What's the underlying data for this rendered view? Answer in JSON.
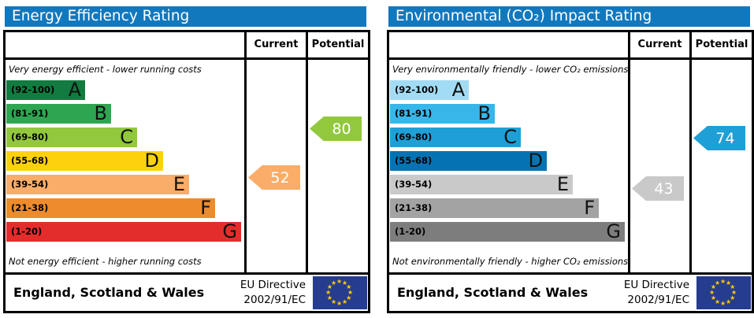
{
  "panels": [
    {
      "title": "Energy Efficiency Rating",
      "header_bg": "#1278be",
      "columns": {
        "current": "Current",
        "potential": "Potential"
      },
      "top_caption": "Very energy efficient - lower running costs",
      "bottom_caption": "Not energy efficient - higher running costs",
      "bands": [
        {
          "range": "(92-100)",
          "letter": "A",
          "color": "#127b40"
        },
        {
          "range": "(81-91)",
          "letter": "B",
          "color": "#2ea651"
        },
        {
          "range": "(69-80)",
          "letter": "C",
          "color": "#92c83e"
        },
        {
          "range": "(55-68)",
          "letter": "D",
          "color": "#fed10e"
        },
        {
          "range": "(39-54)",
          "letter": "E",
          "color": "#f9ad68"
        },
        {
          "range": "(21-38)",
          "letter": "F",
          "color": "#ee8b2c"
        },
        {
          "range": "(1-20)",
          "letter": "G",
          "color": "#e32d2b"
        }
      ],
      "current": {
        "value": "52",
        "color": "#f9ad68"
      },
      "potential": {
        "value": "80",
        "color": "#92c83e"
      },
      "footer": {
        "region": "England, Scotland & Wales",
        "directive_line1": "EU Directive",
        "directive_line2": "2002/91/EC"
      }
    },
    {
      "title": "Environmental (CO₂) Impact Rating",
      "header_bg": "#1278be",
      "columns": {
        "current": "Current",
        "potential": "Potential"
      },
      "top_caption": "Very environmentally friendly - lower CO₂ emissions",
      "bottom_caption": "Not environmentally friendly - higher CO₂ emissions",
      "bands": [
        {
          "range": "(92-100)",
          "letter": "A",
          "color": "#a2dcf4"
        },
        {
          "range": "(81-91)",
          "letter": "B",
          "color": "#38b6e9"
        },
        {
          "range": "(69-80)",
          "letter": "C",
          "color": "#1ea0d6"
        },
        {
          "range": "(55-68)",
          "letter": "D",
          "color": "#0573b3"
        },
        {
          "range": "(39-54)",
          "letter": "E",
          "color": "#c9c9c9"
        },
        {
          "range": "(21-38)",
          "letter": "F",
          "color": "#a3a3a3"
        },
        {
          "range": "(1-20)",
          "letter": "G",
          "color": "#7d7d7d"
        }
      ],
      "current": {
        "value": "43",
        "color": "#c9c9c9"
      },
      "potential": {
        "value": "74",
        "color": "#1ea0d6"
      },
      "footer": {
        "region": "England, Scotland & Wales",
        "directive_line1": "EU Directive",
        "directive_line2": "2002/91/EC"
      }
    }
  ],
  "eu_flag": {
    "bg": "#263c8e",
    "star_color": "#ffcc00",
    "star_char": "★"
  },
  "chart_data": [
    {
      "type": "bar",
      "title": "Energy Efficiency Rating",
      "orientation": "horizontal",
      "categories": [
        "A",
        "B",
        "C",
        "D",
        "E",
        "F",
        "G"
      ],
      "band_ranges": [
        [
          92,
          100
        ],
        [
          81,
          91
        ],
        [
          69,
          80
        ],
        [
          55,
          68
        ],
        [
          39,
          54
        ],
        [
          21,
          38
        ],
        [
          1,
          20
        ]
      ],
      "band_colors": [
        "#127b40",
        "#2ea651",
        "#92c83e",
        "#fed10e",
        "#f9ad68",
        "#ee8b2c",
        "#e32d2b"
      ],
      "markers": {
        "current": 52,
        "potential": 80
      },
      "scale": [
        1,
        100
      ],
      "top_note": "Very energy efficient - lower running costs",
      "bottom_note": "Not energy efficient - higher running costs",
      "legend": [
        "Current",
        "Potential"
      ]
    },
    {
      "type": "bar",
      "title": "Environmental (CO₂) Impact Rating",
      "orientation": "horizontal",
      "categories": [
        "A",
        "B",
        "C",
        "D",
        "E",
        "F",
        "G"
      ],
      "band_ranges": [
        [
          92,
          100
        ],
        [
          81,
          91
        ],
        [
          69,
          80
        ],
        [
          55,
          68
        ],
        [
          39,
          54
        ],
        [
          21,
          38
        ],
        [
          1,
          20
        ]
      ],
      "band_colors": [
        "#a2dcf4",
        "#38b6e9",
        "#1ea0d6",
        "#0573b3",
        "#c9c9c9",
        "#a3a3a3",
        "#7d7d7d"
      ],
      "markers": {
        "current": 43,
        "potential": 74
      },
      "scale": [
        1,
        100
      ],
      "top_note": "Very environmentally friendly - lower CO₂ emissions",
      "bottom_note": "Not environmentally friendly - higher CO₂ emissions",
      "legend": [
        "Current",
        "Potential"
      ]
    }
  ]
}
